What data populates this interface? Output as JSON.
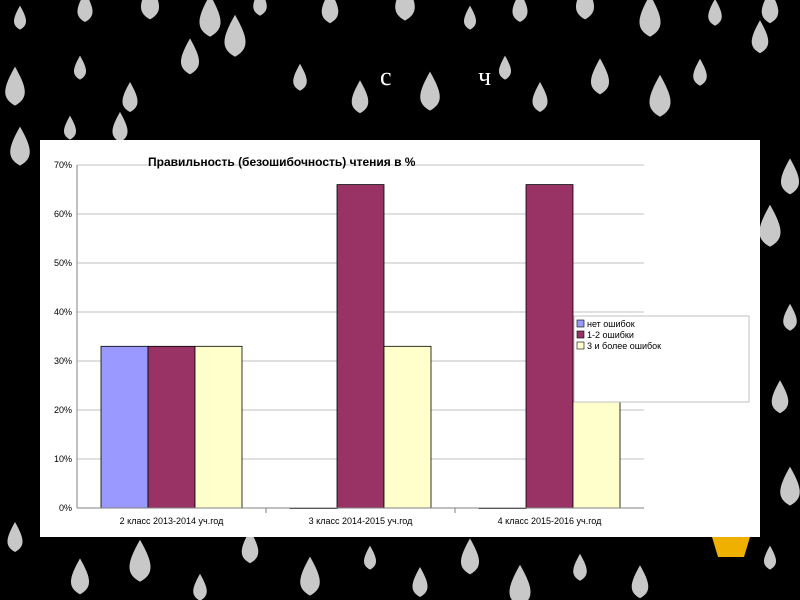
{
  "slide": {
    "title": "с ч"
  },
  "colors": {
    "background": "#000000",
    "drop": "#c8c8c8",
    "panel": "#ffffff",
    "series": [
      "#9999ff",
      "#993366",
      "#ffffcc"
    ]
  },
  "chart_data": {
    "type": "bar",
    "title": "Правильность (безошибочность) чтения в %",
    "categories": [
      "2 класс 2013-2014 уч.год",
      "3 класс 2014-2015 уч.год",
      "4 класс 2015-2016 уч.год"
    ],
    "series": [
      {
        "name": "нет ошибок",
        "values": [
          33,
          0,
          0
        ]
      },
      {
        "name": "1-2 ошибки",
        "values": [
          33,
          66,
          66
        ]
      },
      {
        "name": "3 и более ошибок",
        "values": [
          33,
          33,
          22
        ]
      }
    ],
    "ylim": [
      0,
      70
    ],
    "yticks": [
      0,
      10,
      20,
      30,
      40,
      50,
      60,
      70
    ],
    "ytick_labels": [
      "0%",
      "10%",
      "20%",
      "30%",
      "40%",
      "50%",
      "60%",
      "70%"
    ],
    "grid": true,
    "legend": "right"
  }
}
